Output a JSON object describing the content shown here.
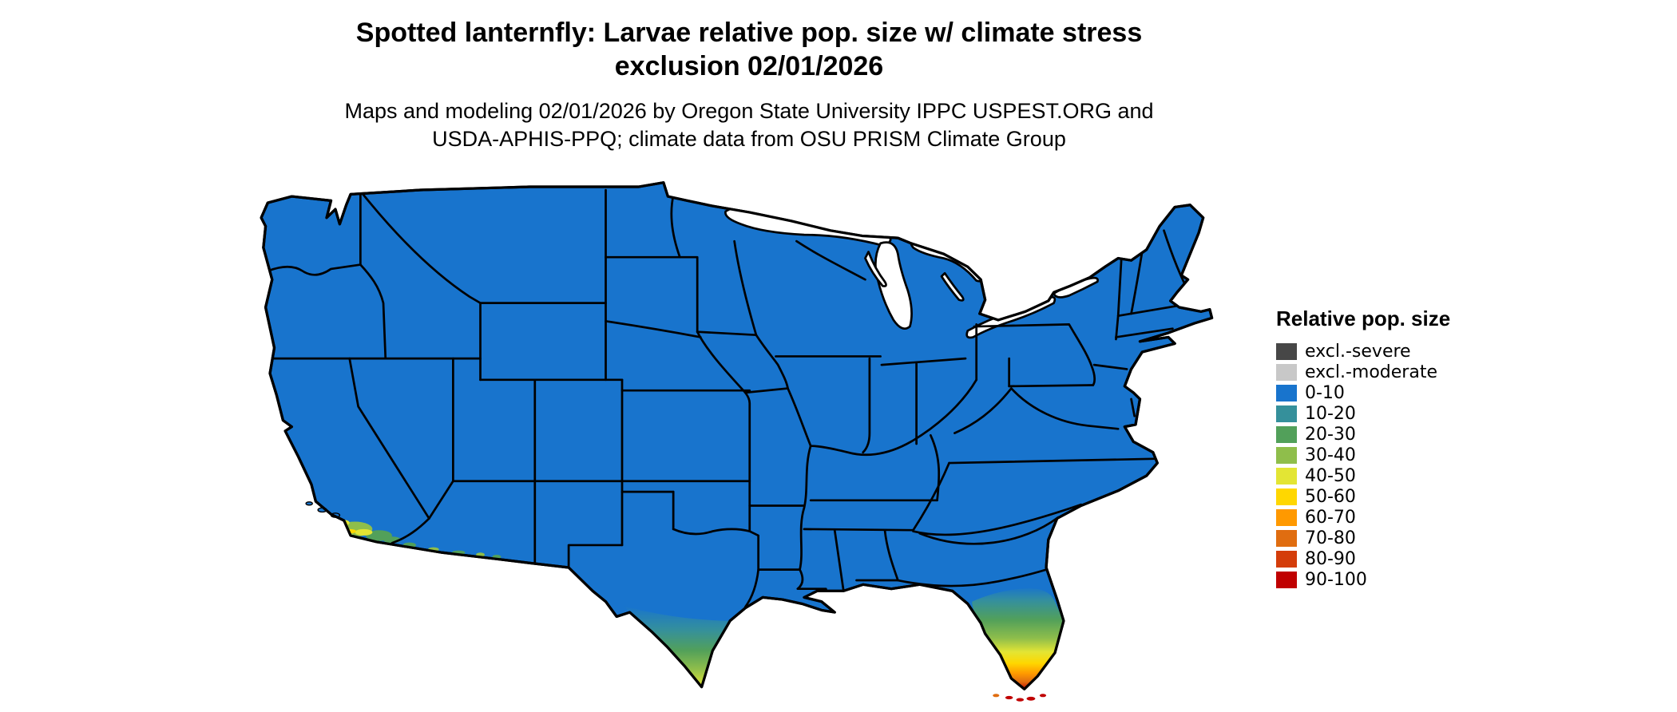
{
  "title": {
    "line1": "Spotted lanternfly: Larvae relative pop. size w/ climate stress",
    "line2": "exclusion 02/01/2026"
  },
  "subtitle": {
    "line1": "Maps and modeling 02/01/2026 by Oregon State University IPPC USPEST.ORG and",
    "line2": "USDA-APHIS-PPQ; climate data from OSU PRISM Climate Group"
  },
  "legend": {
    "title": "Relative pop. size",
    "items": [
      {
        "label": "excl.-severe",
        "color": "#474747"
      },
      {
        "label": "excl.-moderate",
        "color": "#C8C8C8"
      },
      {
        "label": "0-10",
        "color": "#1874CD"
      },
      {
        "label": "10-20",
        "color": "#35909B"
      },
      {
        "label": "20-30",
        "color": "#52A05A"
      },
      {
        "label": "30-40",
        "color": "#8FBE4B"
      },
      {
        "label": "40-50",
        "color": "#E3E534"
      },
      {
        "label": "50-60",
        "color": "#FFD700"
      },
      {
        "label": "60-70",
        "color": "#FF9900"
      },
      {
        "label": "70-80",
        "color": "#E06D10"
      },
      {
        "label": "80-90",
        "color": "#D43D0A"
      },
      {
        "label": "90-100",
        "color": "#C00000"
      }
    ]
  },
  "map": {
    "base_color": "#1874CD",
    "border_color": "#000000",
    "background": "#FFFFFF",
    "hotspots": [
      {
        "region": "southern-florida",
        "values": "10-100, increasing southward; 90-100 at the tip and Florida Keys"
      },
      {
        "region": "southern-texas",
        "values": "10-60, increasing toward the Rio Grande Valley"
      },
      {
        "region": "southern-california-coast",
        "values": "10-50 scattered patches"
      },
      {
        "region": "southern-arizona-border",
        "values": "10-40 small patches"
      }
    ]
  }
}
